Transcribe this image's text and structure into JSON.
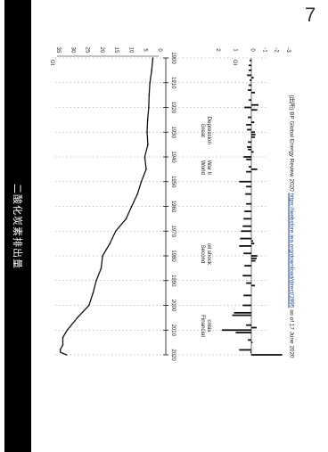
{
  "page": {
    "title": "二酸化炭素排出量",
    "page_number": "7",
    "source_label": "(出所)",
    "source_text": "BP Global Energy Review 2020",
    "source_url": "https://webstore.iea.org/download/direct/2995",
    "source_suffix": " as of 17 June 2020",
    "colors": {
      "title_bar": "#000000",
      "title_text": "#ffffff",
      "line": "#111111"
    }
  },
  "chart_data": [
    {
      "type": "line",
      "title": "",
      "ylabel": "Gt",
      "xlim": [
        1900,
        2020
      ],
      "ylim": [
        0,
        35
      ],
      "yticks": [
        "35",
        "30",
        "25",
        "20",
        "15",
        "10",
        "5",
        "0"
      ],
      "xticks": [
        "1900",
        "1910",
        "1920",
        "1930",
        "1940",
        "1950",
        "1960",
        "1970",
        "1980",
        "1990",
        "2000",
        "2010",
        "2020"
      ],
      "series": [
        {
          "x": [
            1900,
            1905,
            1910,
            1915,
            1920,
            1925,
            1930,
            1935,
            1940,
            1945,
            1950,
            1955,
            1960,
            1965,
            1970,
            1975,
            1980,
            1985,
            1990,
            1995,
            2000,
            2005,
            2010,
            2013,
            2016,
            2018,
            2019,
            2020
          ],
          "values": [
            2.0,
            2.4,
            3.0,
            3.3,
            3.4,
            3.8,
            4.0,
            3.7,
            4.8,
            4.3,
            6.0,
            7.3,
            9.3,
            11.2,
            14.8,
            16.8,
            19.3,
            19.8,
            21.5,
            22.6,
            24.0,
            28.0,
            31.5,
            33.0,
            33.0,
            33.9,
            33.8,
            31.7
          ]
        }
      ],
      "grid": "dotted verticals"
    },
    {
      "type": "bar",
      "title": "",
      "ylabel": "Gt",
      "xlim": [
        1900,
        2020
      ],
      "ylim": [
        -3,
        2
      ],
      "yticks": [
        "2",
        "1",
        "0",
        "-1",
        "-2",
        "-3"
      ],
      "x": [
        1901,
        1903,
        1905,
        1907,
        1908,
        1909,
        1911,
        1913,
        1914,
        1917,
        1919,
        1920,
        1921,
        1924,
        1926,
        1927,
        1929,
        1930,
        1931,
        1932,
        1934,
        1936,
        1937,
        1938,
        1940,
        1941,
        1944,
        1945,
        1946,
        1950,
        1952,
        1955,
        1959,
        1962,
        1965,
        1968,
        1970,
        1973,
        1974,
        1975,
        1976,
        1979,
        1980,
        1981,
        1982,
        1984,
        1988,
        1991,
        1992,
        1996,
        2000,
        2003,
        2004,
        2008,
        2009,
        2010,
        2011,
        2014,
        2015,
        2018,
        2019,
        2020
      ],
      "values": [
        0.1,
        0.15,
        0.15,
        0.25,
        -0.2,
        0.1,
        0.15,
        0.2,
        -0.3,
        0.15,
        -0.6,
        0.4,
        -0.5,
        0.2,
        -0.25,
        0.3,
        0.25,
        -0.3,
        -0.35,
        -0.3,
        0.2,
        0.25,
        0.2,
        -0.2,
        0.45,
        0.3,
        0.15,
        -0.5,
        0.3,
        0.7,
        0.3,
        0.35,
        0.3,
        0.4,
        0.45,
        0.5,
        0.6,
        0.65,
        -0.15,
        -0.25,
        0.7,
        0.45,
        -0.5,
        -0.45,
        -0.35,
        0.4,
        0.5,
        0.3,
        -0.3,
        0.45,
        0.5,
        1.0,
        1.1,
        0.3,
        -0.45,
        1.7,
        0.9,
        0.2,
        -0.1,
        0.7,
        0.05,
        -2.6
      ]
    }
  ],
  "events": [
    {
      "label_1": "Great",
      "label_2": "Depression",
      "year": 1930
    },
    {
      "label_1": "World",
      "label_2": "War II",
      "year": 1945
    },
    {
      "label_1": "Second",
      "label_2": "oil shock",
      "year": 1980
    },
    {
      "label_1": "Financial",
      "label_2": "crisis",
      "year": 2009
    }
  ]
}
